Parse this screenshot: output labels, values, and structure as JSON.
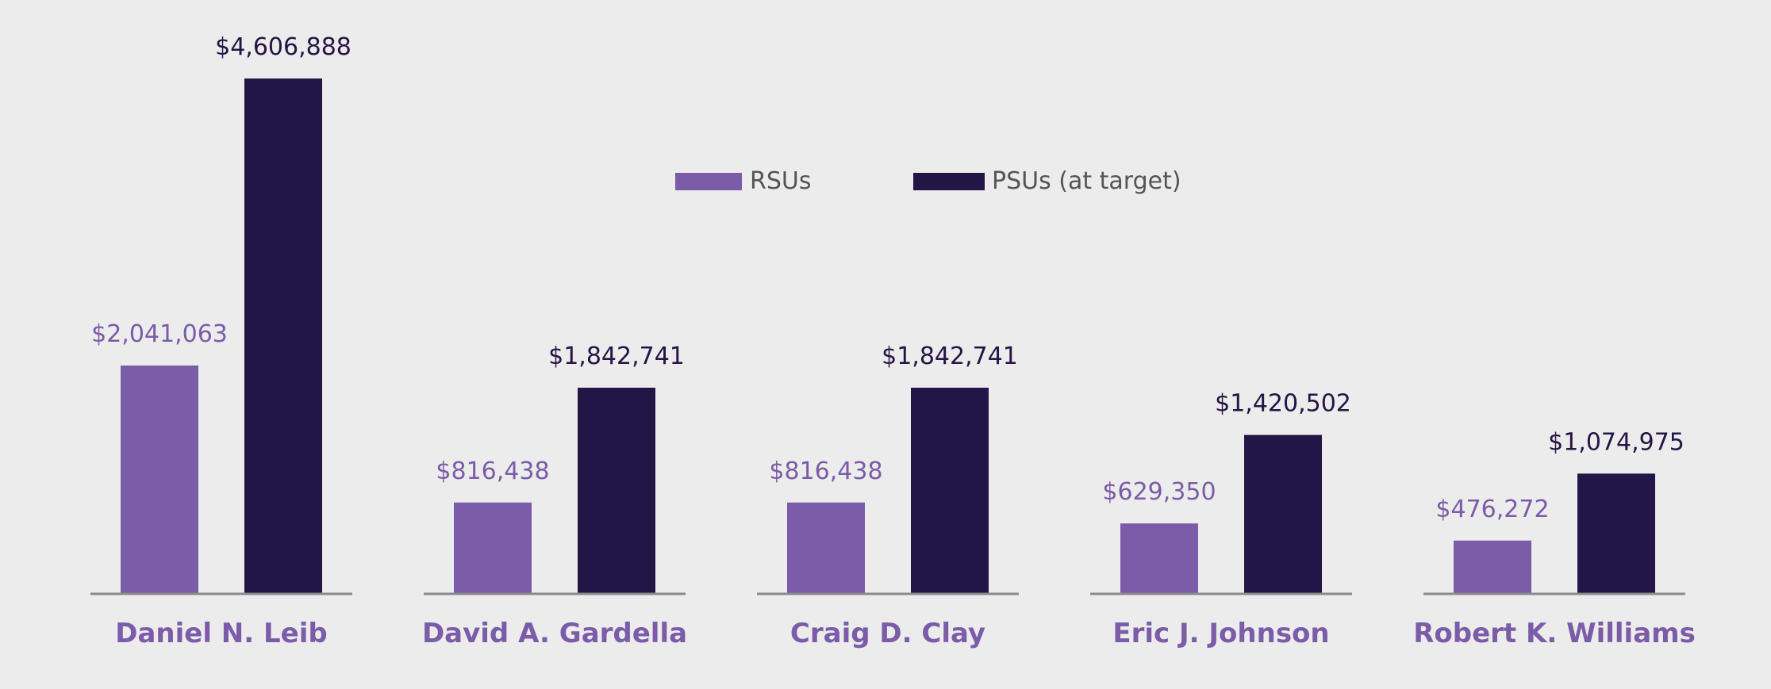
{
  "chart_data": {
    "type": "bar",
    "title": "",
    "xlabel": "",
    "ylabel": "",
    "ylim": [
      0,
      4606888
    ],
    "grid": false,
    "legend_position": "top-center",
    "categories": [
      "Daniel N. Leib",
      "David A. Gardella",
      "Craig D. Clay",
      "Eric J. Johnson",
      "Robert K. Williams"
    ],
    "series": [
      {
        "name": "RSUs",
        "color": "#7a5ca8",
        "values": [
          2041063,
          816438,
          816438,
          629350,
          476272
        ],
        "labels": [
          "$2,041,063",
          "$816,438",
          "$816,438",
          "$629,350",
          "$476,272"
        ]
      },
      {
        "name": "PSUs (at target)",
        "color": "#211645",
        "values": [
          4606888,
          1842741,
          1842741,
          1420502,
          1074975
        ],
        "labels": [
          "$4,606,888",
          "$1,842,741",
          "$1,842,741",
          "$1,420,502",
          "$1,074,975"
        ]
      }
    ]
  },
  "colors": {
    "background": "#ececec",
    "baseline": "#8a8a8a",
    "category_label": "#7a5ca8",
    "legend_text": "#555555"
  }
}
